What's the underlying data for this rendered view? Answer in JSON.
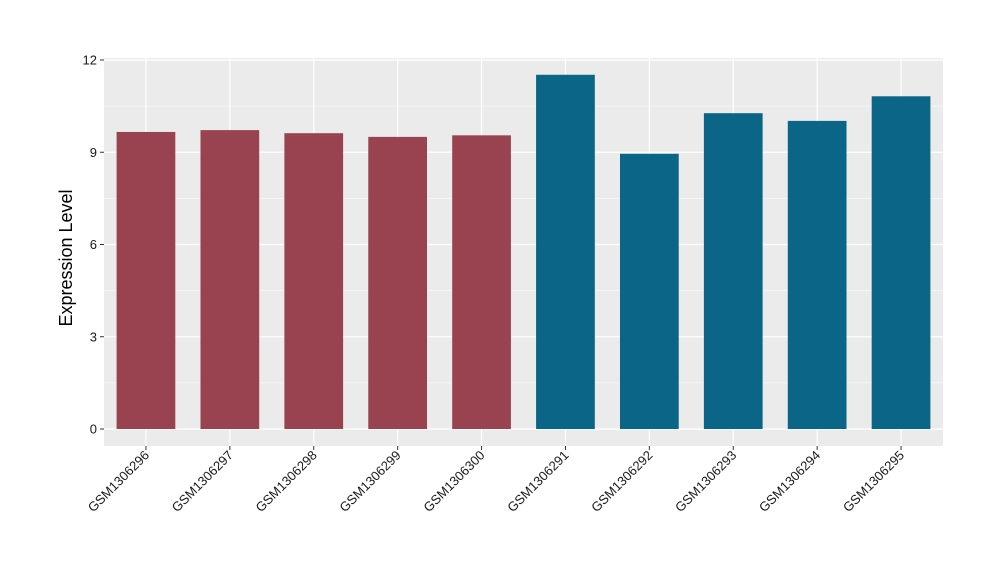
{
  "chart_data": {
    "type": "bar",
    "ylabel": "Expression Level",
    "xlabel": "",
    "ylim": [
      0,
      12
    ],
    "yticks": [
      0,
      3,
      6,
      9,
      12
    ],
    "grid": true,
    "panel_background": "#EBEBEB",
    "grid_color": "#FFFFFF",
    "categories": [
      "GSM1306296",
      "GSM1306297",
      "GSM1306298",
      "GSM1306299",
      "GSM1306300",
      "GSM1306291",
      "GSM1306292",
      "GSM1306293",
      "GSM1306294",
      "GSM1306295"
    ],
    "values": [
      9.66,
      9.72,
      9.62,
      9.5,
      9.55,
      11.52,
      8.95,
      10.27,
      10.02,
      10.82
    ],
    "bar_colors": [
      "#98434F",
      "#98434F",
      "#98434F",
      "#98434F",
      "#98434F",
      "#0B6587",
      "#0B6587",
      "#0B6587",
      "#0B6587",
      "#0B6587"
    ]
  }
}
